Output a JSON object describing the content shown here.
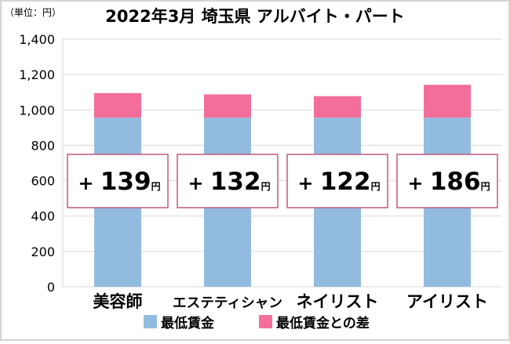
{
  "chart_data": {
    "type": "bar",
    "stacked": true,
    "title": "2022年3月 埼玉県 アルバイト・パート",
    "unit_label": "（単位：円）",
    "categories": [
      "美容師",
      "エステティシャン",
      "ネイリスト",
      "アイリスト"
    ],
    "series": [
      {
        "name": "最低賃金",
        "color": "#92bcdf",
        "values": [
          956,
          956,
          956,
          956
        ]
      },
      {
        "name": "最低賃金との差",
        "color": "#f36e9a",
        "values": [
          139,
          132,
          122,
          186
        ]
      }
    ],
    "ylim": [
      0,
      1400
    ],
    "yticks": [
      0,
      200,
      400,
      600,
      800,
      1000,
      1200,
      1400
    ],
    "ytick_labels": [
      "0",
      "200",
      "400",
      "600",
      "800",
      "1,000",
      "1,200",
      "1,400"
    ],
    "grid": true,
    "legend_position": "bottom",
    "annotations": [
      {
        "prefix": "+",
        "number": "139",
        "unit": "円"
      },
      {
        "prefix": "+",
        "number": "132",
        "unit": "円"
      },
      {
        "prefix": "+",
        "number": "122",
        "unit": "円"
      },
      {
        "prefix": "+",
        "number": "186",
        "unit": "円"
      }
    ],
    "colors": {
      "border": "#c5c5c5",
      "grid": "#d9d9d9",
      "annotation_border": "#c2587f",
      "text": "#000000"
    }
  }
}
